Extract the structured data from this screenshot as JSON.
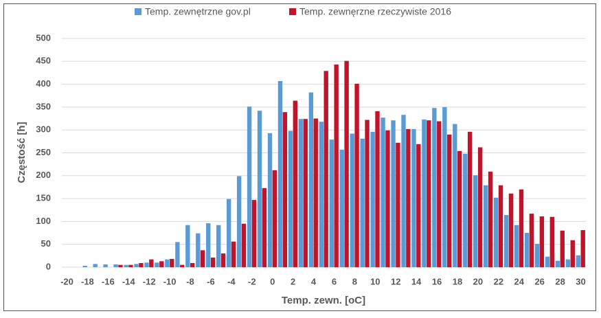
{
  "chart_data": {
    "type": "bar",
    "x_label": "Temp. zewn. [oC]",
    "y_label": "Częstość [h]",
    "categories": [
      "-20",
      null,
      "-18",
      null,
      "-16",
      null,
      "-14",
      null,
      "-12",
      null,
      "-10",
      null,
      "-8",
      null,
      "-6",
      null,
      "-4",
      null,
      "-2",
      null,
      "0",
      null,
      "2",
      null,
      "4",
      null,
      "6",
      null,
      "8",
      null,
      "10",
      null,
      "12",
      null,
      "14",
      null,
      "16",
      null,
      "18",
      null,
      "20",
      null,
      "22",
      null,
      "24",
      null,
      "26",
      null,
      "28",
      null,
      "30"
    ],
    "series": [
      {
        "name": "Temp. zewnętrzne gov.pl",
        "color": "#5b9bd5",
        "values": [
          0,
          0,
          3,
          7,
          6,
          6,
          5,
          7,
          10,
          10,
          17,
          55,
          92,
          74,
          96,
          92,
          149,
          199,
          351,
          342,
          293,
          407,
          298,
          324,
          382,
          318,
          279,
          257,
          292,
          281,
          296,
          327,
          321,
          333,
          302,
          323,
          348,
          350,
          313,
          248,
          201,
          179,
          152,
          114,
          92,
          75,
          51,
          23,
          14,
          17,
          26
        ]
      },
      {
        "name": "Temp. zewnęrzne rzeczywiste 2016",
        "color": "#c0142b",
        "values": [
          0,
          0,
          0,
          0,
          0,
          5,
          5,
          9,
          17,
          13,
          18,
          5,
          9,
          37,
          21,
          30,
          56,
          95,
          147,
          173,
          212,
          339,
          364,
          324,
          325,
          429,
          443,
          451,
          401,
          322,
          341,
          299,
          272,
          302,
          269,
          321,
          319,
          290,
          254,
          296,
          262,
          209,
          179,
          161,
          170,
          117,
          111,
          110,
          80,
          59,
          81
        ]
      }
    ],
    "ylim": [
      0,
      500
    ],
    "yticks": [
      0,
      50,
      100,
      150,
      200,
      250,
      300,
      350,
      400,
      450,
      500
    ],
    "grid": true,
    "legend": "top"
  }
}
